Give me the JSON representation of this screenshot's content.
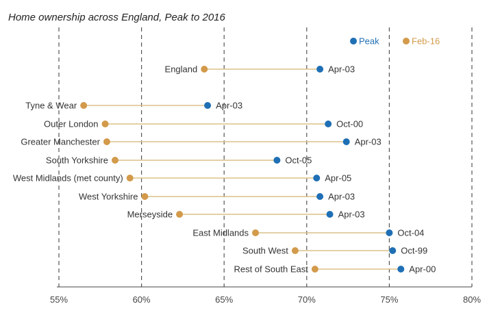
{
  "chart_data": {
    "type": "dumbbell",
    "title": "Home ownership across England, Peak to 2016",
    "xlim": [
      55,
      80
    ],
    "x_ticks": [
      55,
      60,
      65,
      70,
      75,
      80
    ],
    "x_tick_labels": [
      "55%",
      "60%",
      "65%",
      "70%",
      "75%",
      "80%"
    ],
    "grid": "vertical dashed",
    "legend": {
      "placement": "top-right",
      "entries": [
        {
          "name": "Peak",
          "color": "#1f6fb5"
        },
        {
          "name": "Feb-16",
          "color": "#d29a4a"
        }
      ]
    },
    "colors": {
      "peak": "#1f6fb5",
      "current": "#d29a4a",
      "connector": "#dcc089"
    },
    "categories": [
      "England",
      "Tyne & Wear",
      "Outer London",
      "Greater Manchester",
      "South Yorkshire",
      "West Midlands (met county)",
      "West Yorkshire",
      "Merseyside",
      "East Midlands",
      "South West",
      "Rest of South East"
    ],
    "series": [
      {
        "name": "Peak",
        "values": [
          70.8,
          64.0,
          71.3,
          72.4,
          68.2,
          70.6,
          70.8,
          71.4,
          75.0,
          75.2,
          75.7
        ]
      },
      {
        "name": "Feb-16",
        "values": [
          63.8,
          56.5,
          57.8,
          57.9,
          58.4,
          59.3,
          60.2,
          62.3,
          66.9,
          69.3,
          70.5
        ]
      }
    ],
    "peak_labels": [
      "Apr-03",
      "Apr-03",
      "Oct-00",
      "Apr-03",
      "Oct-05",
      "Apr-05",
      "Apr-03",
      "Apr-03",
      "Oct-04",
      "Oct-99",
      "Apr-00"
    ]
  }
}
